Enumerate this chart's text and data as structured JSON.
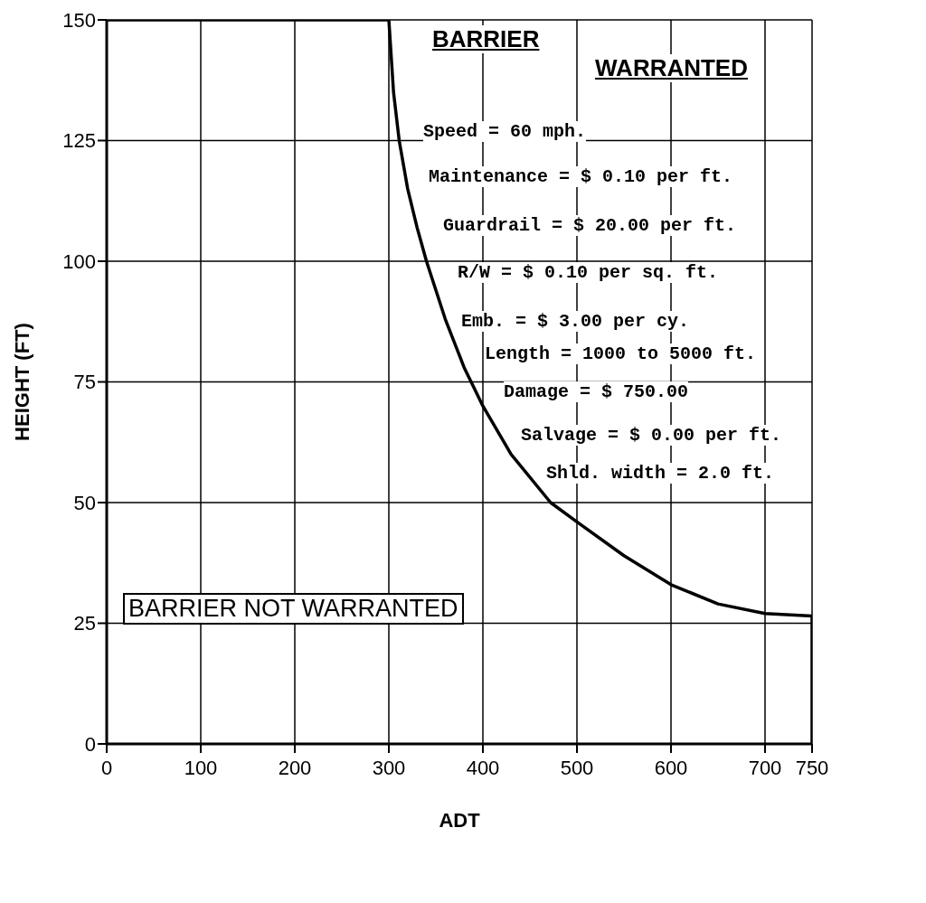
{
  "chart_data": {
    "type": "line",
    "xlabel": "ADT",
    "ylabel": "HEIGHT (FT)",
    "x": [
      0,
      300,
      305,
      311,
      320,
      330,
      340,
      360,
      380,
      400,
      430,
      472,
      500,
      550,
      600,
      650,
      700,
      750,
      750
    ],
    "series": [
      {
        "color": "#000000",
        "values": [
          150,
          150,
          135,
          125,
          115,
          107,
          100,
          88,
          78,
          70,
          60,
          50,
          46,
          39,
          33,
          29,
          27,
          26.5,
          0
        ]
      }
    ],
    "xlim": [
      0,
      750
    ],
    "xticks": [
      0,
      100,
      200,
      300,
      400,
      500,
      600,
      700,
      750
    ],
    "ylim": [
      0,
      150
    ],
    "yticks": [
      0,
      25,
      50,
      75,
      100,
      125,
      150
    ],
    "grid": true,
    "annotations": [
      "BARRIER",
      "WARRANTED",
      "Speed = 60 mph.",
      "Maintenance = $ 0.10 per ft.",
      "Guardrail = $ 20.00 per ft.",
      "R/W = $ 0.10 per sq. ft.",
      "Emb. = $ 3.00 per cy.",
      "Length = 1000 to 5000 ft.",
      "Damage = $ 750.00",
      "Salvage = $ 0.00 per ft.",
      "Shld. width = 2.0 ft.",
      "BARRIER NOT WARRANTED"
    ]
  }
}
